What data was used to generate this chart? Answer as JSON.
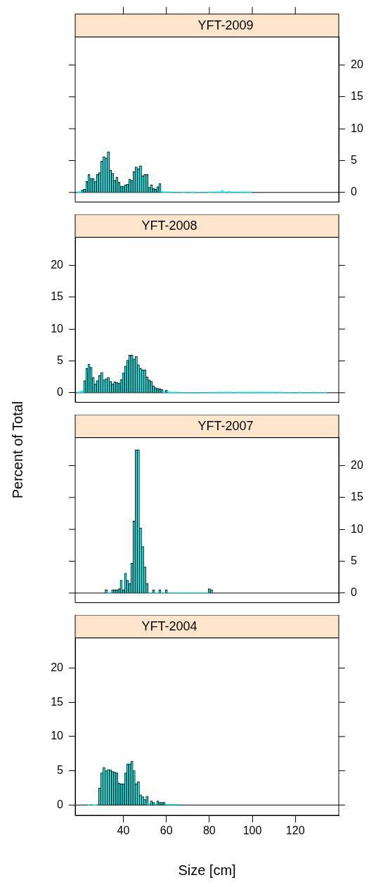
{
  "chart_data": [
    {
      "type": "histogram",
      "title": "YFT-2009",
      "bins": [
        18.5,
        19.5,
        20.5,
        21.5,
        22.5,
        23.5,
        24.5,
        25.5,
        26.5,
        27.5,
        28.5,
        29.5,
        30.5,
        31.5,
        32.5,
        33.5,
        34.5,
        35.5,
        36.5,
        37.5,
        38.5,
        39.5,
        40.5,
        41.5,
        42.5,
        43.5,
        44.5,
        45.5,
        46.5,
        47.5,
        48.5,
        49.5,
        50.5,
        51.5,
        52.5,
        53.5,
        54.5,
        55.5,
        56.5,
        57.5,
        58.5,
        59.5,
        60.5,
        61.5,
        62.5,
        63.5,
        64.5,
        65.5,
        66.5,
        67.5,
        68.5,
        69.5,
        70.5,
        71.5,
        72.5,
        73.5,
        74.5,
        75.5,
        76.5,
        77.5,
        78.5,
        79.5,
        80.5,
        81.5,
        82.5,
        83.5,
        84.5,
        85.5,
        86.5,
        87.5,
        88.5,
        89.5,
        90.5,
        91.5,
        92.5,
        93.5,
        94.5,
        95.5,
        96.5,
        97.5,
        98.5,
        99.5
      ],
      "series": [
        {
          "color": "#00ffff",
          "axis": "y2",
          "values": [
            0.1,
            0.2,
            0.4,
            0.5,
            1.7,
            2.8,
            2.2,
            2.2,
            1.7,
            2.8,
            3.1,
            4.9,
            5.6,
            5.4,
            6.4,
            3.5,
            3.0,
            1.9,
            2.4,
            1.6,
            1.0,
            1.0,
            1.2,
            1.3,
            2.1,
            1.9,
            3.3,
            4.0,
            3.7,
            4.2,
            2.6,
            2.8,
            2.8,
            0.8,
            1.2,
            0.6,
            0.5,
            0.9,
            1.4,
            0.2,
            0.1,
            0.1,
            0.1,
            0.1,
            0,
            0,
            0,
            0,
            0,
            0.1,
            0,
            0,
            0,
            0.1,
            0,
            0,
            0,
            0,
            0,
            0,
            0,
            0.1,
            0.1,
            0,
            0.1,
            0.1,
            0.1,
            0.3,
            0.1,
            0,
            0.2,
            0.1,
            0,
            0.1,
            0,
            0.1,
            0.1,
            0,
            0.1,
            0.1,
            0.1
          ]
        }
      ],
      "xlim": [
        17.6,
        140.2
      ],
      "xticks": [
        40,
        60,
        80,
        100,
        120
      ],
      "y2lim": [
        -1.5,
        24.4
      ],
      "y2ticks": [
        0,
        5,
        10,
        15,
        20
      ],
      "tick_labels": "y",
      "ref_lines": [
        {
          "axis": "y2",
          "value": 0
        }
      ]
    },
    {
      "type": "histogram",
      "title": "YFT-2008",
      "ylabel": "Percent of Total",
      "bins": [
        18.5,
        19.5,
        20.5,
        21.5,
        22.5,
        23.5,
        24.5,
        25.5,
        26.5,
        27.5,
        28.5,
        29.5,
        30.5,
        31.5,
        32.5,
        33.5,
        34.5,
        35.5,
        36.5,
        37.5,
        38.5,
        39.5,
        40.5,
        41.5,
        42.5,
        43.5,
        44.5,
        45.5,
        46.5,
        47.5,
        48.5,
        49.5,
        50.5,
        51.5,
        52.5,
        53.5,
        54.5,
        55.5,
        56.5,
        57.5,
        58.5,
        59.5,
        60.5,
        61.5,
        62.5,
        63.5,
        64.5,
        65.5,
        66.5,
        67.5,
        68.5,
        69.5,
        70.5,
        71.5,
        72.5,
        73.5,
        74.5,
        75.5,
        76.5,
        77.5,
        78.5,
        79.5,
        80.5,
        81.5,
        82.5,
        83.5,
        84.5,
        85.5,
        86.5,
        87.5,
        88.5,
        89.5,
        90.5,
        91.5,
        92.5,
        93.5,
        94.5,
        95.5,
        96.5,
        97.5,
        98.5,
        99.5,
        100.5,
        101.5,
        102.5,
        103.5,
        104.5,
        105.5,
        106.5,
        107.5,
        108.5,
        109.5,
        110.5,
        111.5,
        112.5,
        113.5,
        114.5,
        115.5,
        116.5,
        117.5,
        118.5,
        119.5,
        120.5,
        121.5,
        122.5,
        123.5,
        124.5,
        125.5,
        126.5,
        127.5,
        128.5,
        129.5,
        130.5,
        131.5,
        132.5,
        133.5,
        134.5
      ],
      "series": [
        {
          "color": "#00ffff",
          "values": [
            0.1,
            0.2,
            0.3,
            1.9,
            3.8,
            4.5,
            4.0,
            2.4,
            1.4,
            1.9,
            2.7,
            3.2,
            2.0,
            2.2,
            2.4,
            1.8,
            1.4,
            1.7,
            1.6,
            1.5,
            2.1,
            3.1,
            4.2,
            5.1,
            5.9,
            5.9,
            5.3,
            5.7,
            4.4,
            3.8,
            3.6,
            3.6,
            2.5,
            2.0,
            1.8,
            1.1,
            0.8,
            0.7,
            0.6,
            0.5,
            0.2,
            0.4,
            0.2,
            0.1,
            0.1,
            0.1,
            0.1,
            0,
            0,
            0,
            0,
            0,
            0,
            0,
            0,
            0,
            0,
            0,
            0,
            0,
            0,
            0,
            0.1,
            0,
            0,
            0.1,
            0.1,
            0.1,
            0.1,
            0.1,
            0.1,
            0.1,
            0.1,
            0,
            0.1,
            0.1,
            0.1,
            0.1,
            0.1,
            0.1,
            0.1,
            0.1,
            0.1,
            0.1,
            0.1,
            0.1,
            0.1,
            0.1,
            0.1,
            0.1,
            0.1,
            0.1,
            0,
            0.1,
            0.1,
            0.1,
            0,
            0,
            0,
            0,
            0,
            0,
            0,
            0.1,
            0,
            0,
            0,
            0,
            0,
            0,
            0.1,
            0,
            0,
            0,
            0,
            0.1
          ]
        }
      ],
      "xlim": [
        17.6,
        140.2
      ],
      "xticks": [
        40,
        60,
        80,
        100,
        120
      ],
      "ylim": [
        -1.5,
        24.4
      ],
      "yticks": [
        0,
        5,
        10,
        15,
        20
      ],
      "tick_labels": "y",
      "ref_lines": [
        {
          "axis": "y",
          "value": 0
        }
      ]
    },
    {
      "type": "histogram",
      "title": "YFT-2007",
      "bins": [
        31.5,
        32.5,
        33.5,
        34.5,
        35.5,
        36.5,
        37.5,
        38.5,
        39.5,
        40.5,
        41.5,
        42.5,
        43.5,
        44.5,
        45.5,
        46.5,
        47.5,
        48.5,
        49.5,
        50.5,
        51.5,
        52.5,
        53.5,
        54.5,
        55.5,
        56.5,
        57.5,
        58.5,
        59.5,
        60.5,
        61.5,
        62.5,
        63.5,
        64.5,
        65.5,
        66.5,
        67.5,
        68.5,
        69.5,
        70.5,
        71.5,
        72.5,
        73.5,
        74.5,
        75.5,
        76.5,
        77.5,
        78.5,
        79.5,
        80.5,
        81.5
      ],
      "series": [
        {
          "color": "#00ffff",
          "axis": "y2",
          "values": [
            0.5,
            0,
            0,
            0.5,
            0.5,
            0.5,
            0.7,
            2.0,
            0.5,
            3.1,
            2.0,
            1.5,
            4.7,
            11.3,
            22.5,
            22.5,
            10.2,
            7.3,
            4.1,
            1.5,
            0,
            0,
            0.5,
            0,
            0,
            0.5,
            0,
            0,
            0.5,
            0,
            0,
            0,
            0,
            0,
            0,
            0,
            0,
            0,
            0,
            0,
            0,
            0,
            0,
            0,
            0,
            0,
            0,
            0,
            0.7,
            0.5
          ]
        }
      ],
      "xlim": [
        17.6,
        140.2
      ],
      "xticks": [
        40,
        60,
        80,
        100,
        120
      ],
      "y2lim": [
        -1.5,
        24.4
      ],
      "y2ticks": [
        0,
        5,
        10,
        15,
        20
      ],
      "tick_labels": "y",
      "ref_lines": [
        {
          "axis": "y2",
          "value": 0
        }
      ]
    },
    {
      "type": "histogram",
      "title": "YFT-2004",
      "xlabel": "Size [cm]",
      "bins": [
        22.5,
        23.5,
        24.5,
        25.5,
        26.5,
        27.5,
        28.5,
        29.5,
        30.5,
        31.5,
        32.5,
        33.5,
        34.5,
        35.5,
        36.5,
        37.5,
        38.5,
        39.5,
        40.5,
        41.5,
        42.5,
        43.5,
        44.5,
        45.5,
        46.5,
        47.5,
        48.5,
        49.5,
        50.5,
        51.5,
        52.5,
        53.5,
        54.5,
        55.5,
        56.5,
        57.5,
        58.5,
        59.5,
        60.5,
        61.5,
        62.5,
        63.5,
        64.5,
        65.5,
        66.5
      ],
      "series": [
        {
          "color": "#00ffff",
          "values": [
            0.1,
            0,
            0.1,
            0,
            0,
            0.1,
            2.5,
            4.7,
            5.5,
            5.0,
            5.2,
            5.1,
            4.9,
            4.8,
            4.7,
            3.2,
            3.1,
            3.1,
            4.7,
            6.0,
            6.0,
            6.4,
            5.0,
            3.1,
            3.4,
            1.5,
            1.2,
            0.8,
            1.3,
            0.2,
            0.6,
            0.4,
            0.2,
            0.6,
            0.4,
            0.4,
            0.4,
            0.1,
            0.1,
            0.1,
            0.1,
            0.1,
            0.1,
            0.1
          ]
        }
      ],
      "xlim": [
        17.6,
        140.2
      ],
      "xticks": [
        40,
        60,
        80,
        100,
        120
      ],
      "ylim": [
        -1.5,
        24.4
      ],
      "yticks": [
        0,
        5,
        10,
        15,
        20
      ],
      "ref_lines": [
        {
          "axis": "y",
          "value": 0
        }
      ]
    }
  ]
}
